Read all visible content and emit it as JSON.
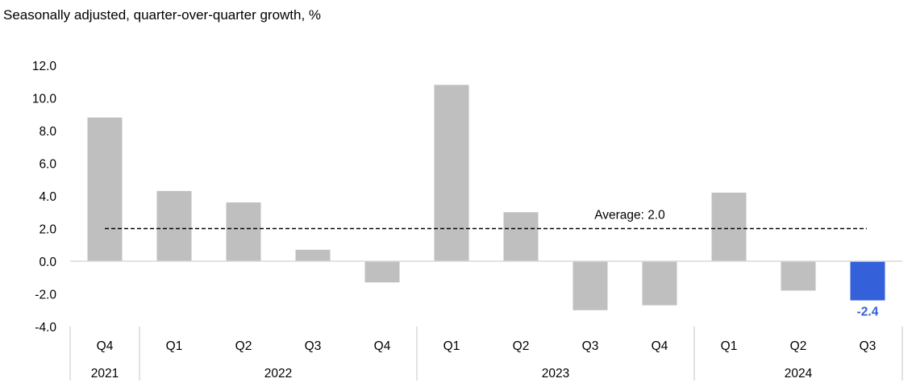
{
  "chart_data": {
    "type": "bar",
    "title": "Seasonally adjusted, quarter-over-quarter growth, %",
    "categories": [
      "Q4",
      "Q1",
      "Q2",
      "Q3",
      "Q4",
      "Q1",
      "Q2",
      "Q3",
      "Q4",
      "Q1",
      "Q2",
      "Q3"
    ],
    "years": [
      {
        "label": "2021",
        "span": 1
      },
      {
        "label": "2022",
        "span": 4
      },
      {
        "label": "2023",
        "span": 4
      },
      {
        "label": "2024",
        "span": 3
      }
    ],
    "values": [
      8.8,
      4.3,
      3.6,
      0.7,
      -1.3,
      10.8,
      3.0,
      -3.0,
      -2.7,
      4.2,
      -1.8,
      -2.4
    ],
    "highlight_index": 11,
    "highlight_label": "-2.4",
    "ylim": [
      -4.0,
      12.0
    ],
    "yticks": [
      "12.0",
      "10.0",
      "8.0",
      "6.0",
      "4.0",
      "2.0",
      "0.0",
      "-2.0",
      "-4.0"
    ],
    "average": {
      "value": 2.0,
      "label": "Average: 2.0"
    },
    "colors": {
      "bar": "#bfbfbf",
      "highlight": "#3461d9",
      "axis": "#d9d9d9",
      "average_line": "#000000"
    },
    "grid": false,
    "xlabel": "",
    "ylabel": ""
  }
}
